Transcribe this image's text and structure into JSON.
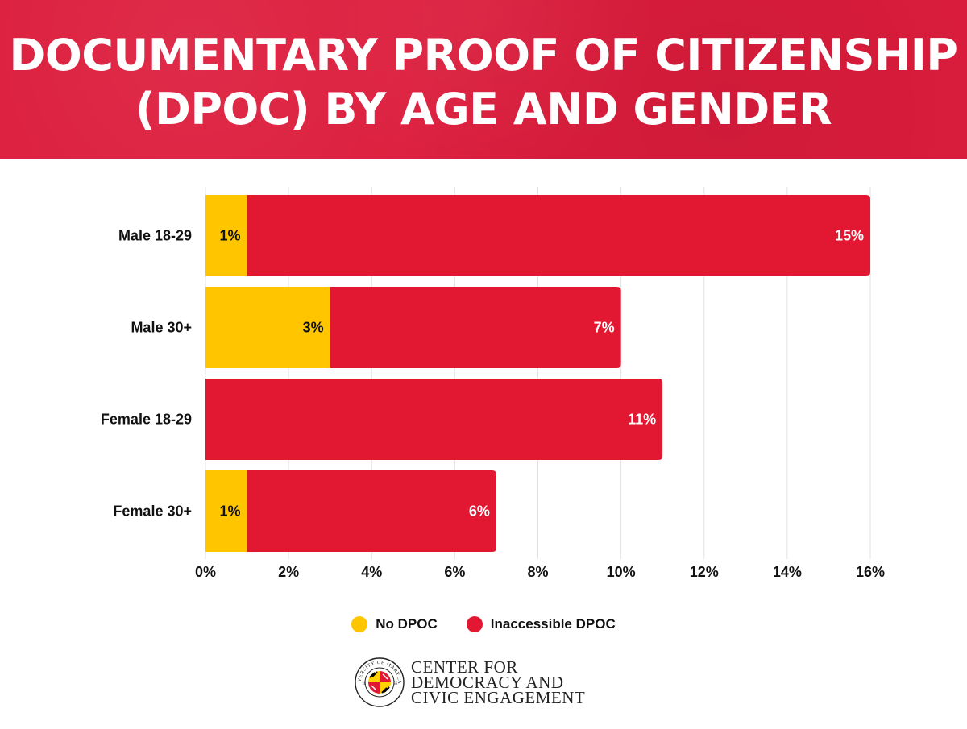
{
  "header": {
    "title_line1": "DOCUMENTARY PROOF OF CITIZENSHIP",
    "title_line2": "(DPOC) BY AGE AND GENDER"
  },
  "chart_data": {
    "type": "bar",
    "orientation": "horizontal",
    "stacked": true,
    "title": "DOCUMENTARY PROOF OF CITIZENSHIP (DPOC) BY AGE AND GENDER",
    "categories": [
      "Male 18-29",
      "Male 30+",
      "Female 18-29",
      "Female 30+"
    ],
    "series": [
      {
        "name": "No DPOC",
        "color": "#ffc600",
        "values": [
          1,
          3,
          0,
          1
        ],
        "labels": [
          "1%",
          "3%",
          "",
          "1%"
        ]
      },
      {
        "name": "Inaccessible DPOC",
        "color": "#e21833",
        "values": [
          15,
          7,
          11,
          6
        ],
        "labels": [
          "15%",
          "7%",
          "11%",
          "6%"
        ]
      }
    ],
    "xlim": [
      0,
      16
    ],
    "ticks": [
      0,
      2,
      4,
      6,
      8,
      10,
      12,
      14,
      16
    ],
    "tick_labels": [
      "0%",
      "2%",
      "4%",
      "6%",
      "8%",
      "10%",
      "12%",
      "14%",
      "16%"
    ],
    "grid": true,
    "legend_position": "bottom-center"
  },
  "logo": {
    "seal_text": "UNIVERSITY OF MARYLAND",
    "seal_year_left": "18",
    "seal_year_right": "56",
    "org_line1": "CENTER FOR",
    "org_line2": "DEMOCRACY AND",
    "org_line3": "CIVIC ENGAGEMENT"
  }
}
